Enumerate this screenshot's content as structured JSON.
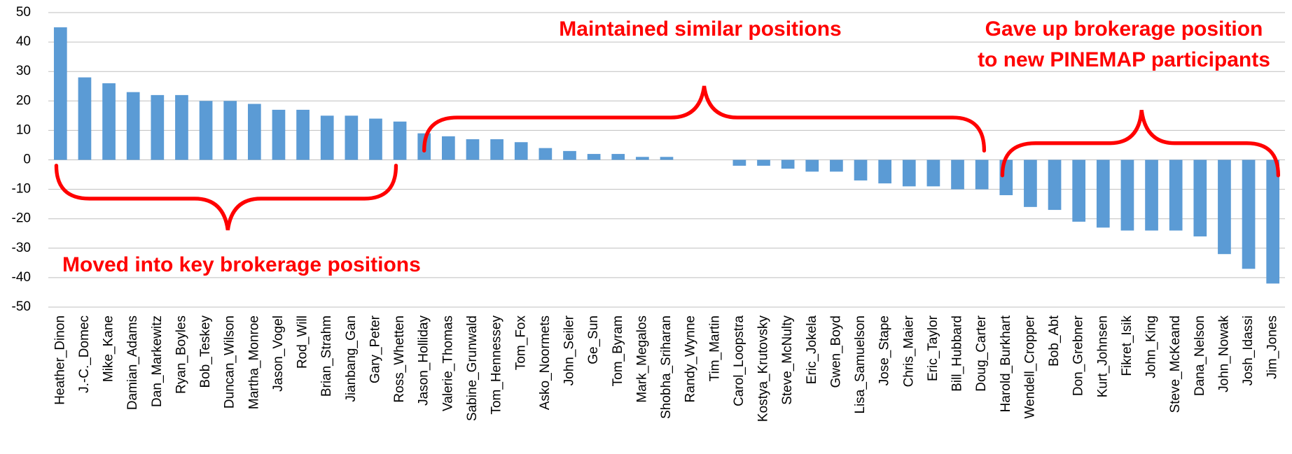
{
  "chart_data": {
    "type": "bar",
    "categories": [
      "Heather_Dinon",
      "J.-C._Domec",
      "Mike_Kane",
      "Damian_Adams",
      "Dan_Markewitz",
      "Ryan_Boyles",
      "Bob_Teskey",
      "Duncan_Wilson",
      "Martha_Monroe",
      "Jason_Vogel",
      "Rod_Will",
      "Brian_Strahm",
      "Jianbang_Gan",
      "Gary_Peter",
      "Ross_Whetten",
      "Jason_Holliday",
      "Valerie_Thomas",
      "Sabine_Grunwald",
      "Tom_Hennessey",
      "Tom_Fox",
      "Asko_Noormets",
      "John_Seiler",
      "Ge_Sun",
      "Tom_Byram",
      "Mark_Megalos",
      "Shobha_Sriharan",
      "Randy_Wynne",
      "Tim_Martin",
      "Carol_Loopstra",
      "Kostya_Krutovsky",
      "Steve_McNulty",
      "Eric_Jokela",
      "Gwen_Boyd",
      "Lisa_Samuelson",
      "Jose_Stape",
      "Chris_Maier",
      "Eric_Taylor",
      "Bill_Hubbard",
      "Doug_Carter",
      "Harold_Burkhart",
      "Wendell_Cropper",
      "Bob_Abt",
      "Don_Grebner",
      "Kurt_Johnsen",
      "Fikret_Isik",
      "John_King",
      "Steve_McKeand",
      "Dana_Nelson",
      "John_Nowak",
      "Josh_Idassi",
      "Jim_Jones"
    ],
    "values": [
      45,
      28,
      26,
      23,
      22,
      22,
      20,
      20,
      19,
      17,
      17,
      15,
      15,
      14,
      13,
      9,
      8,
      7,
      7,
      6,
      4,
      3,
      2,
      2,
      1,
      1,
      0,
      0,
      -2,
      -2,
      -3,
      -4,
      -4,
      -7,
      -8,
      -9,
      -9,
      -10,
      -10,
      -12,
      -16,
      -17,
      -21,
      -23,
      -24,
      -24,
      -24,
      -26,
      -32,
      -37,
      -42
    ],
    "color": "#5b9bd5",
    "ylim": [
      -50,
      50
    ],
    "yticks": [
      -50,
      -40,
      -30,
      -20,
      -10,
      0,
      10,
      20,
      30,
      40,
      50
    ],
    "grid": true,
    "annotations": {
      "middle": "Maintained similar positions",
      "right": [
        "Gave up brokerage position",
        "to new PINEMAP participants"
      ],
      "left": "Moved into key brokerage positions"
    }
  }
}
